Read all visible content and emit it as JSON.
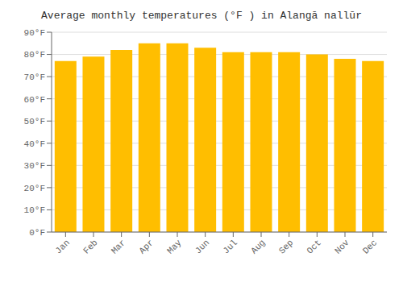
{
  "chart_data": {
    "type": "bar",
    "title": "Average monthly temperatures (°F ) in Alangā nallūr",
    "categories": [
      "Jan",
      "Feb",
      "Mar",
      "Apr",
      "May",
      "Jun",
      "Jul",
      "Aug",
      "Sep",
      "Oct",
      "Nov",
      "Dec"
    ],
    "values": [
      77,
      79,
      82,
      85,
      85,
      83,
      81,
      81,
      81,
      80,
      78,
      77
    ],
    "color": "#FFBE00",
    "ylim": [
      0,
      90
    ],
    "yticks": [
      {
        "value": 0,
        "label": "0°F"
      },
      {
        "value": 10,
        "label": "10°F"
      },
      {
        "value": 20,
        "label": "20°F"
      },
      {
        "value": 30,
        "label": "30°F"
      },
      {
        "value": 40,
        "label": "40°F"
      },
      {
        "value": 50,
        "label": "50°F"
      },
      {
        "value": 60,
        "label": "60°F"
      },
      {
        "value": 70,
        "label": "70°F"
      },
      {
        "value": 80,
        "label": "80°F"
      },
      {
        "value": 90,
        "label": "90°F"
      }
    ],
    "grid": true
  }
}
